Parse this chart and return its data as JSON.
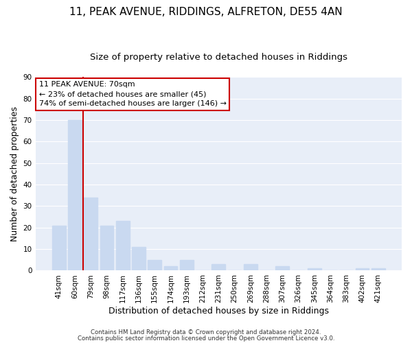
{
  "title": "11, PEAK AVENUE, RIDDINGS, ALFRETON, DE55 4AN",
  "subtitle": "Size of property relative to detached houses in Riddings",
  "xlabel": "Distribution of detached houses by size in Riddings",
  "ylabel": "Number of detached properties",
  "bar_labels": [
    "41sqm",
    "60sqm",
    "79sqm",
    "98sqm",
    "117sqm",
    "136sqm",
    "155sqm",
    "174sqm",
    "193sqm",
    "212sqm",
    "231sqm",
    "250sqm",
    "269sqm",
    "288sqm",
    "307sqm",
    "326sqm",
    "345sqm",
    "364sqm",
    "383sqm",
    "402sqm",
    "421sqm"
  ],
  "bar_values": [
    21,
    70,
    34,
    21,
    23,
    11,
    5,
    2,
    5,
    0,
    3,
    0,
    3,
    0,
    2,
    0,
    1,
    0,
    0,
    1,
    1
  ],
  "bar_color": "#c9d9f0",
  "marker_color": "#cc0000",
  "ylim": [
    0,
    90
  ],
  "yticks": [
    0,
    10,
    20,
    30,
    40,
    50,
    60,
    70,
    80,
    90
  ],
  "annotation_title": "11 PEAK AVENUE: 70sqm",
  "annotation_line1": "← 23% of detached houses are smaller (45)",
  "annotation_line2": "74% of semi-detached houses are larger (146) →",
  "footer1": "Contains HM Land Registry data © Crown copyright and database right 2024.",
  "footer2": "Contains public sector information licensed under the Open Government Licence v3.0.",
  "bg_color": "#ffffff",
  "plot_bg_color": "#e8eef8",
  "grid_color": "#ffffff",
  "title_fontsize": 11,
  "subtitle_fontsize": 9.5,
  "axis_label_fontsize": 9,
  "tick_fontsize": 7.5,
  "annotation_box_color": "#ffffff",
  "annotation_border_color": "#cc0000"
}
